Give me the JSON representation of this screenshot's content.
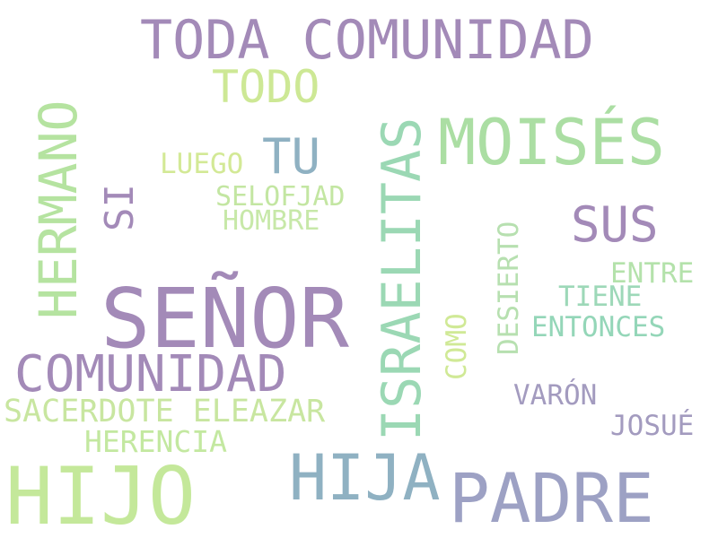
{
  "words": [
    {
      "text": "SEÑOR",
      "color": "#a38ab8"
    },
    {
      "text": "HIJO",
      "color": "#c4e89a"
    },
    {
      "text": "PADRE",
      "color": "#9da1c4"
    },
    {
      "text": "HIJA",
      "color": "#8fb1c2"
    },
    {
      "text": "MOISÉS",
      "color": "#abdea3"
    },
    {
      "text": "ISRAELITAS",
      "color": "#9bd8b4"
    },
    {
      "text": "HERMANO",
      "color": "#b5e3a0"
    },
    {
      "text": "TODA COMUNIDAD",
      "color": "#a38ab8"
    },
    {
      "text": "COMUNIDAD",
      "color": "#a38ab8"
    },
    {
      "text": "SUS",
      "color": "#a38ab8"
    },
    {
      "text": "TODO",
      "color": "#cde895"
    },
    {
      "text": "TU",
      "color": "#8fb1c2"
    },
    {
      "text": "SI",
      "color": "#a38ab8"
    },
    {
      "text": "SACERDOTE ELEAZAR",
      "color": "#c8e6a0"
    },
    {
      "text": "HERENCIA",
      "color": "#c3e8a0"
    },
    {
      "text": "DESIERTO",
      "color": "#b7e0b0"
    },
    {
      "text": "COMO",
      "color": "#d0e996"
    },
    {
      "text": "ENTRE",
      "color": "#b4e2ab"
    },
    {
      "text": "TIENE",
      "color": "#9dd8b8"
    },
    {
      "text": "ENTONCES",
      "color": "#94d6b8"
    },
    {
      "text": "VARÓN",
      "color": "#a39bbf"
    },
    {
      "text": "JOSUÉ",
      "color": "#a39bbf"
    },
    {
      "text": "LUEGO",
      "color": "#d3e996"
    },
    {
      "text": "SELOFJAD",
      "color": "#c3e6a2"
    },
    {
      "text": "HOMBRE",
      "color": "#c7e8a8"
    }
  ]
}
